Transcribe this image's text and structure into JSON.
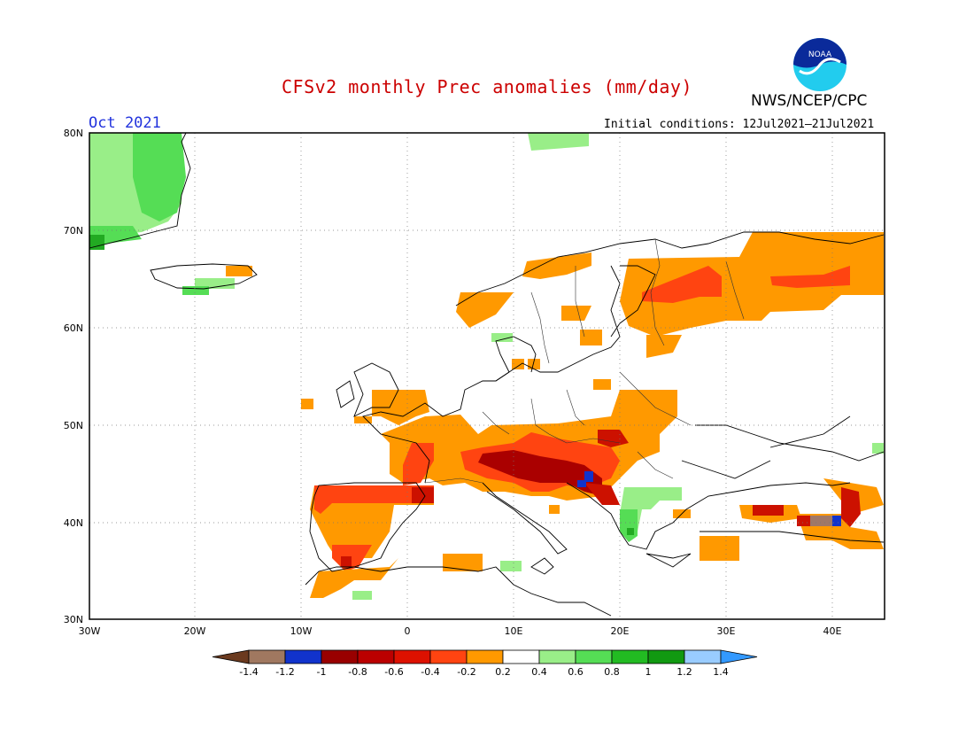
{
  "title": "CFSv2 monthly Prec anomalies (mm/day)",
  "month": "Oct 2021",
  "initial_conditions": "Initial conditions: 12Jul2021–21Jul2021",
  "agency": "NWS/NCEP/CPC",
  "logo_text": "NOAA",
  "axes": {
    "lat_labels": [
      "80N",
      "70N",
      "60N",
      "50N",
      "40N",
      "30N"
    ],
    "lon_labels": [
      "30W",
      "20W",
      "10W",
      "0",
      "10E",
      "20E",
      "30E",
      "40E"
    ]
  },
  "colorbar": {
    "labels": [
      "-1.4",
      "-1.2",
      "-1",
      "-0.8",
      "-0.6",
      "-0.4",
      "-0.2",
      "0.2",
      "0.4",
      "0.6",
      "0.8",
      "1",
      "1.2",
      "1.4"
    ],
    "colors": [
      "#6b3a1f",
      "#a07860",
      "#1133cc",
      "#990000",
      "#bb0000",
      "#dd1100",
      "#ff4411",
      "#ff9900",
      "#ffffff",
      "#99ee88",
      "#55dd55",
      "#22bb22",
      "#119911",
      "#99ccff",
      "#3399ff"
    ]
  },
  "map_data": {
    "extent": {
      "lon_min": -30,
      "lon_max": 45,
      "lat_min": 30,
      "lat_max": 80
    },
    "anomaly_colors": {
      "brown": "#a07868",
      "blue": "#1133cc",
      "darkred": "#aa0000",
      "red": "#cc1100",
      "orangered": "#ff4411",
      "orange": "#ff9900",
      "lightgreen": "#99ee88",
      "green": "#55dd55",
      "darkgreen": "#22aa22"
    }
  }
}
